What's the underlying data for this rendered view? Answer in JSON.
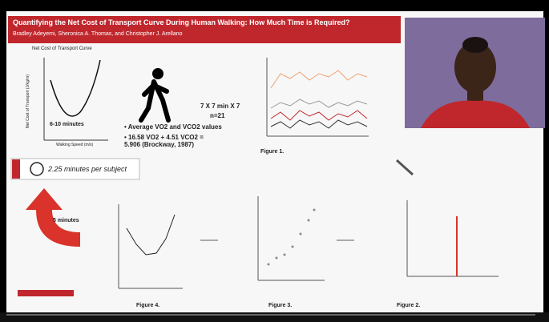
{
  "slide": {
    "title": "Quantifying the Net Cost of Transport Curve During Human Walking: How Much Time is Required?",
    "authors": "Bradley Adeyemi, Sheronica A. Thomas, and Christopher J. Arellano",
    "curve_title": "Net Cost of Transport Curve",
    "curve_y_label": "Net Cost of Transport (J/kg/m)",
    "curve_x_label": "Walking Speed (m/s)",
    "curve_note": "6-10 minutes",
    "protocol": "7 X 7 min X 7",
    "sample": "n=21",
    "bullets": [
      "Average VO2 and VCO2 values",
      "16.58 VO2 + 4.51 VCO2 = 5.906 (Brockway, 1987)"
    ],
    "time_per_subject": "2.25 minutes per subject",
    "arrow_note": "5 minutes",
    "figures": [
      "Figure 1.",
      "Figure 2.",
      "Figure 3.",
      "Figure 4."
    ]
  }
}
